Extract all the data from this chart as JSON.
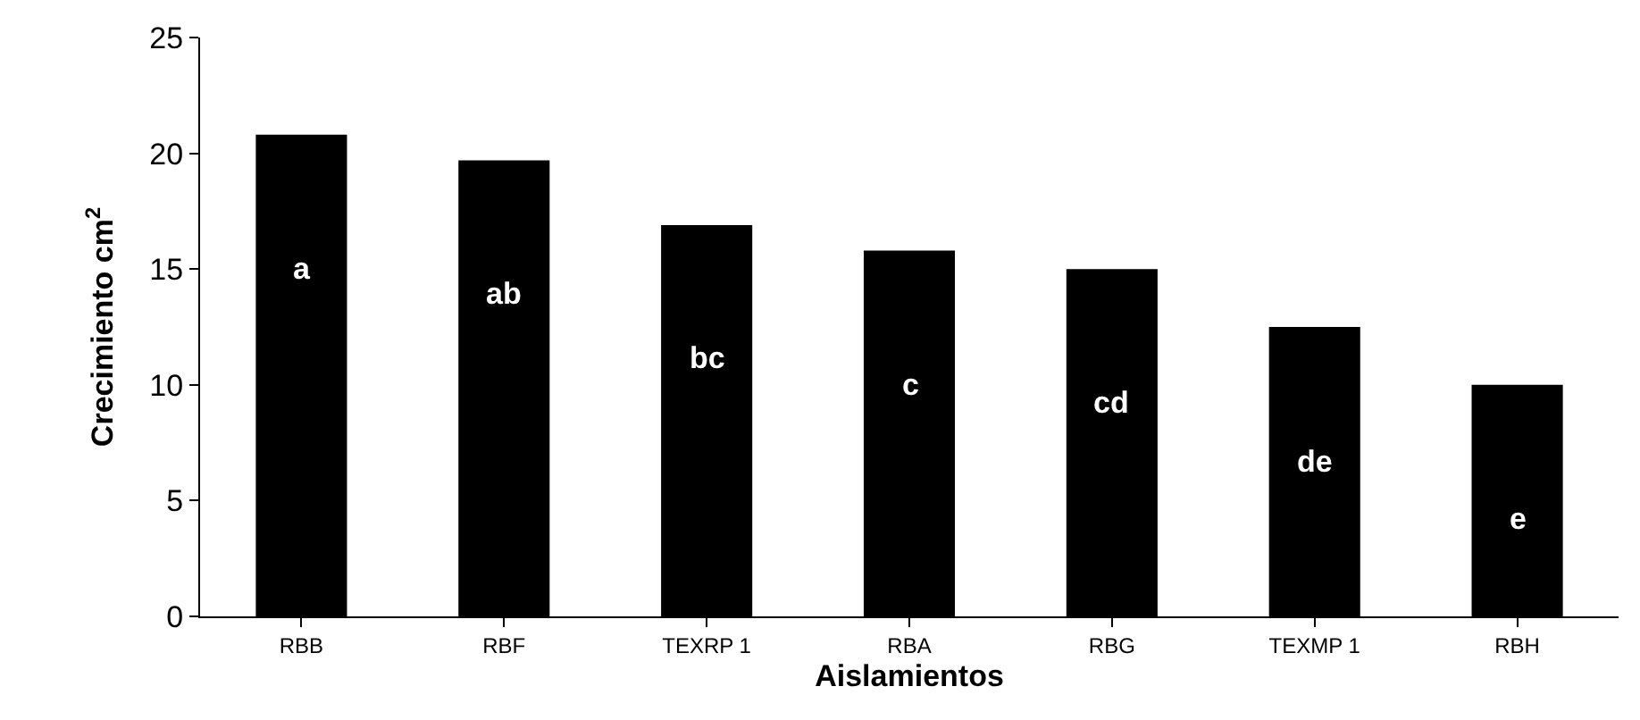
{
  "chart_data": {
    "type": "bar",
    "xlabel": "Aislamientos",
    "ylabel": "Crecimiento cm$^{2}$",
    "categories": [
      "RBB",
      "RBF",
      "TEXRP 1",
      "RBA",
      "RBG",
      "TEXMP 1",
      "RBH"
    ],
    "values": [
      20.8,
      19.7,
      16.9,
      15.8,
      15.0,
      12.5,
      10.0
    ],
    "color": "#000000",
    "ylim": [
      0,
      25
    ],
    "yticks": [
      0,
      5,
      10,
      15,
      20,
      25
    ],
    "annotations": [
      "a",
      "ab",
      "bc",
      "c",
      "cd",
      "de",
      "e"
    ]
  }
}
